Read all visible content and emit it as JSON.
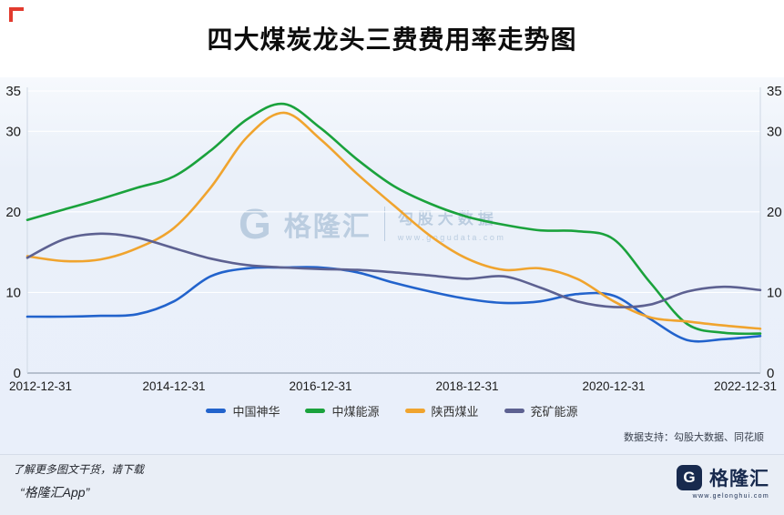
{
  "page": {
    "title": "四大煤炭龙头三费费用率走势图",
    "data_support": "数据支持：勾股大数据、同花顺",
    "watermark": {
      "brand_letter": "G",
      "brand_name": "格隆汇",
      "product": "勾股大数据",
      "url": "www.gogudata.com"
    },
    "footer": {
      "promo_line1": "了解更多图文干货，请下载",
      "promo_line2": "“格隆汇App”",
      "brand_letter": "G",
      "brand_name": "格隆汇",
      "brand_url": "www.gelonghui.com"
    }
  },
  "chart_data": {
    "type": "line",
    "title": "四大煤炭龙头三费费用率走势图",
    "xlabel": "",
    "ylabel": "",
    "ylim": [
      0,
      35
    ],
    "y_ticks": [
      0,
      10,
      20,
      30,
      35
    ],
    "grid": true,
    "legend_position": "bottom",
    "x": [
      "2012-12-31",
      "2013-06-30",
      "2013-12-31",
      "2014-06-30",
      "2014-12-31",
      "2015-06-30",
      "2015-12-31",
      "2016-06-30",
      "2016-12-31",
      "2017-06-30",
      "2017-12-31",
      "2018-06-30",
      "2018-12-31",
      "2019-06-30",
      "2019-12-31",
      "2020-06-30",
      "2020-12-31",
      "2021-06-30",
      "2021-12-31",
      "2022-06-30",
      "2022-12-31"
    ],
    "x_tick_positions": [
      0,
      4,
      8,
      12,
      16,
      20
    ],
    "x_tick_labels": [
      "2012-12-31",
      "2014-12-31",
      "2016-12-31",
      "2018-12-31",
      "2020-12-31",
      "2022-12-31"
    ],
    "series": [
      {
        "name": "中国神华",
        "color": "#2263cc",
        "values": [
          7.0,
          7.0,
          7.1,
          7.3,
          8.9,
          12.0,
          13.0,
          13.1,
          13.1,
          12.5,
          11.2,
          10.1,
          9.2,
          8.7,
          8.9,
          9.8,
          9.6,
          6.7,
          4.1,
          4.2,
          4.6
        ]
      },
      {
        "name": "中煤能源",
        "color": "#1aa23c",
        "values": [
          19.0,
          20.3,
          21.6,
          23.0,
          24.4,
          27.6,
          31.5,
          33.4,
          30.4,
          26.5,
          23.2,
          21.0,
          19.4,
          18.4,
          17.7,
          17.6,
          16.6,
          11.2,
          6.1,
          5.0,
          4.9
        ]
      },
      {
        "name": "陕西煤业",
        "color": "#f0a42e",
        "values": [
          14.5,
          13.9,
          14.1,
          15.5,
          18.0,
          23.0,
          29.3,
          32.3,
          29.0,
          24.7,
          20.8,
          17.0,
          14.2,
          12.8,
          13.0,
          11.7,
          8.9,
          6.9,
          6.4,
          5.9,
          5.5
        ]
      },
      {
        "name": "兖矿能源",
        "color": "#5d6191",
        "values": [
          14.3,
          16.6,
          17.3,
          16.8,
          15.5,
          14.2,
          13.4,
          13.1,
          12.9,
          12.8,
          12.5,
          12.1,
          11.7,
          12.0,
          10.6,
          8.9,
          8.2,
          8.5,
          10.1,
          10.7,
          10.3
        ]
      }
    ],
    "style": {
      "axis_color": "#97a3b4",
      "grid_color": "#ffffff",
      "tick_label_color": "#1c1c1c",
      "panel_bg": "#e9effa"
    }
  }
}
